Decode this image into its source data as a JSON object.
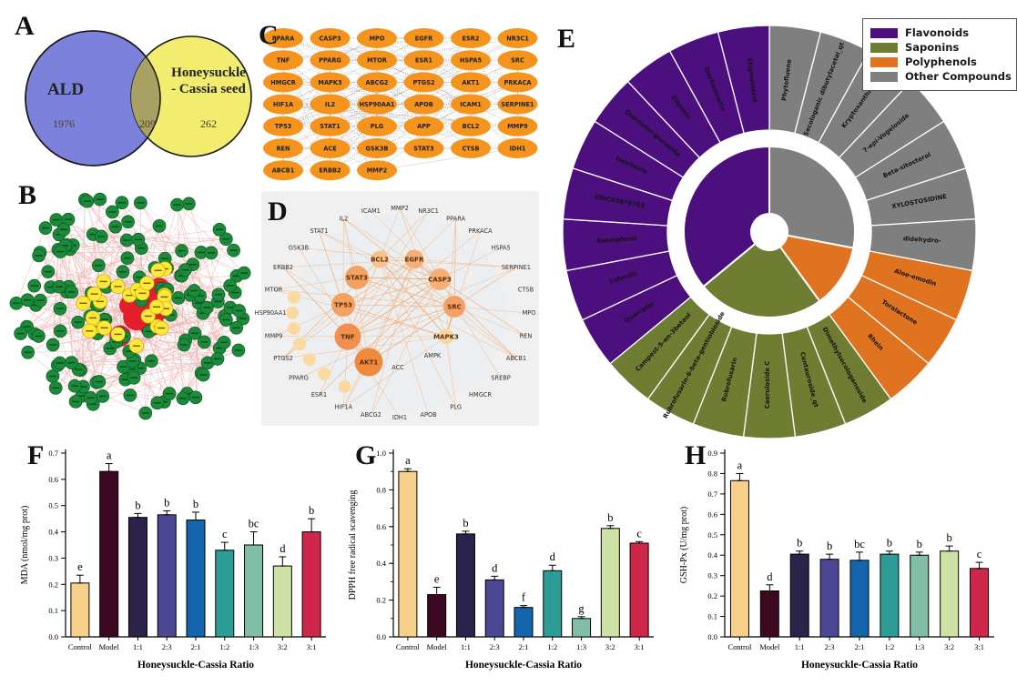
{
  "panels": {
    "a": {
      "letter": "A",
      "venn": {
        "left_label": "ALD",
        "left_count": "1976",
        "overlap_count": "209",
        "right_label_line1": "Honeysuckle",
        "right_label_line2": "- Cassia seed",
        "right_count": "262",
        "left_color": "#7c82dc",
        "right_color": "#f2ed6f",
        "overlap_color": "#a9a164",
        "outline_color": "#1a1a1a"
      }
    },
    "b": {
      "letter": "B",
      "network": {
        "outer_color": "#1b8a3a",
        "outer_stroke": "#0a5a22",
        "hub_color": "#ffe838",
        "hub_stroke": "#b8a000",
        "core_color": "#e31f2b",
        "edge_color_pink": "#f0adad",
        "edge_color_gray": "#cccccc",
        "outer_count": 150,
        "hub_count": 24,
        "core_count": 10
      }
    },
    "c": {
      "letter": "C",
      "node_color": "#f5941d",
      "edge_color": "#9a9a9a",
      "text_color": "#222222",
      "rows": [
        [
          "PPARA",
          "CASP3",
          "MPO",
          "EGFR",
          "ESR2",
          "NR3C1"
        ],
        [
          "TNF",
          "PPARG",
          "MTOR",
          "ESR1",
          "HSPA5",
          "SRC"
        ],
        [
          "HMGCR",
          "MAPK3",
          "ABCG2",
          "PTGS2",
          "AKT1",
          "PRKACA"
        ],
        [
          "HIF1A",
          "IL2",
          "HSP90AA1",
          "APOB",
          "ICAM1",
          "SERPINE1"
        ],
        [
          "TP53",
          "STAT1",
          "PLG",
          "APP",
          "BCL2",
          "MMP9"
        ],
        [
          "REN",
          "ACE",
          "GSK3B",
          "STAT3",
          "CTSB",
          "IDH1"
        ],
        [
          "ABCB1",
          "ERBB2",
          "MMP2"
        ]
      ]
    },
    "d": {
      "letter": "D",
      "background": "#f0f0f0",
      "edge_color": "#f3a76b",
      "label_color": "#333333",
      "outer_labels": [
        "MMP2",
        "NR3C1",
        "PPARA",
        "PRKACA",
        "HSPA5",
        "SERPINE1",
        "CTSB",
        "MPO",
        "REN",
        "ABCB1",
        "SREBP",
        "HMGCR",
        "PLG",
        "APOB",
        "IDH1",
        "ABCG2",
        "HIF1A",
        "ESR1",
        "PPARG",
        "PTGS2",
        "MMP9",
        "HSP90AA1",
        "MTOR",
        "ERBB2",
        "GSK3B",
        "STAT1",
        "IL2",
        "ICAM1"
      ],
      "ring_node_labels": [
        "HIF1A",
        "ESR1",
        "PPARG",
        "PTGS2",
        "MMP9",
        "HSP90AA1",
        "MTOR"
      ],
      "ring_node_color": "#fcd9a0",
      "mid_labels": [
        "ACC",
        "AMPK"
      ],
      "hub_nodes": [
        {
          "label": "AKT1",
          "size": 15.5,
          "color": "#ef8a3c"
        },
        {
          "label": "TNF",
          "size": 14.5,
          "color": "#f09050"
        },
        {
          "label": "TP53",
          "size": 13,
          "color": "#f4a263"
        },
        {
          "label": "STAT3",
          "size": 13,
          "color": "#f4a263"
        },
        {
          "label": "SRC",
          "size": 12,
          "color": "#f4a263"
        },
        {
          "label": "CASP3",
          "size": 12,
          "color": "#f6b077"
        },
        {
          "label": "EGFR",
          "size": 10.5,
          "color": "#f6b077"
        },
        {
          "label": "BCL2",
          "size": 9.5,
          "color": "#f8c08b"
        },
        {
          "label": "MAPK3",
          "size": 8.5,
          "color": "#fbd79f"
        }
      ]
    },
    "e": {
      "letter": "E"
    },
    "f": {
      "letter": "F"
    },
    "g": {
      "letter": "G"
    },
    "h": {
      "letter": "H"
    }
  },
  "chart_data": [
    {
      "type": "pie",
      "subtype": "sunburst",
      "panel": "E",
      "wedge_order": "clockwise-from-top",
      "equal_wedge_angle_deg": 14.4,
      "legend_position": "top-right",
      "legend": [
        {
          "label": "Flavonoids",
          "color": "#4b0f7e"
        },
        {
          "label": "Saponins",
          "color": "#6f7d33"
        },
        {
          "label": "Polyphenols",
          "color": "#e0731f"
        },
        {
          "label": "Other Compounds",
          "color": "#7f7f7f"
        }
      ],
      "categories": [
        {
          "name": "Other Compounds",
          "color": "#7f7f7f",
          "compounds": [
            "Phytofluene",
            "Secologanic dibutylacetal_qt",
            "Kryptoxanthin",
            "7-epi-Vogeloside",
            "Beta-sitosterol",
            "XYLOSTOSIDINE",
            "didehydro-"
          ]
        },
        {
          "name": "Polyphenols",
          "color": "#e0731f",
          "compounds": [
            "Aloe-emodin",
            "Toralactone",
            "Rhein"
          ]
        },
        {
          "name": "Saponins",
          "color": "#6f7d33",
          "compounds": [
            "Dimethylsecologanoside",
            "Centauroside_qt",
            "Caeruloside C",
            "Rubrofusarin",
            "Rubrofusarin-6-beta-gentiobioside",
            "Campest-5-en-3betaol"
          ]
        },
        {
          "name": "Flavonoids",
          "color": "#4b0f7e",
          "compounds": [
            "Quercetin",
            "Luteolin",
            "Kaempferol",
            "ZINC03978783",
            "Isovitexin",
            "Quercetin-glucoside",
            "Diosmin",
            "Isorhamnetin",
            "Stigmasterol"
          ]
        }
      ]
    },
    {
      "type": "bar",
      "panel": "F",
      "title": "",
      "ylabel": "MDA (nmol/mg prot)",
      "xlabel": "Honeysuckle-Cassia Ratio",
      "ylim": [
        0,
        0.7
      ],
      "ytick_step": 0.1,
      "categories": [
        "Control",
        "Model",
        "1:1",
        "2:3",
        "2:1",
        "1:2",
        "1:3",
        "3:2",
        "3:1"
      ],
      "values": [
        0.205,
        0.63,
        0.455,
        0.465,
        0.445,
        0.33,
        0.35,
        0.27,
        0.4
      ],
      "errors": [
        0.03,
        0.03,
        0.015,
        0.015,
        0.03,
        0.03,
        0.05,
        0.035,
        0.05
      ],
      "sig_letters": [
        "e",
        "a",
        "b",
        "b",
        "b",
        "c",
        "bc",
        "d",
        "b"
      ],
      "bar_colors": [
        "#f7d08a",
        "#3c0920",
        "#2b2349",
        "#4c4793",
        "#1565ad",
        "#2e9c96",
        "#80bfa5",
        "#cee2a5",
        "#ce2749"
      ]
    },
    {
      "type": "bar",
      "panel": "G",
      "title": "",
      "ylabel": "DPPH free radical scavenging",
      "xlabel": "Honeysuckle-Cassia Ratio",
      "ylim": [
        0,
        1.0
      ],
      "ytick_step": 0.2,
      "ytick_minor_step": 0.1,
      "categories": [
        "Control",
        "Model",
        "1:1",
        "2:3",
        "2:1",
        "1:2",
        "1:3",
        "3:2",
        "3:1"
      ],
      "values": [
        0.9,
        0.23,
        0.56,
        0.31,
        0.16,
        0.36,
        0.1,
        0.59,
        0.51
      ],
      "errors": [
        0.015,
        0.04,
        0.015,
        0.02,
        0.01,
        0.03,
        0.01,
        0.015,
        0.008
      ],
      "sig_letters": [
        "a",
        "e",
        "b",
        "d",
        "f",
        "d",
        "g",
        "b",
        "c"
      ],
      "bar_colors": [
        "#f7d08a",
        "#3c0920",
        "#2b2349",
        "#4c4793",
        "#1565ad",
        "#2e9c96",
        "#80bfa5",
        "#cee2a5",
        "#ce2749"
      ]
    },
    {
      "type": "bar",
      "panel": "H",
      "title": "",
      "ylabel": "GSH-Px (U/mg prot)",
      "xlabel": "Honeysuckle-Cassia Ratio",
      "ylim": [
        0,
        0.9
      ],
      "ytick_step": 0.1,
      "categories": [
        "Control",
        "Model",
        "1:1",
        "2:3",
        "2:1",
        "1:2",
        "1:3",
        "3:2",
        "3:1"
      ],
      "values": [
        0.765,
        0.225,
        0.405,
        0.38,
        0.375,
        0.405,
        0.4,
        0.42,
        0.335
      ],
      "errors": [
        0.035,
        0.03,
        0.015,
        0.025,
        0.04,
        0.015,
        0.015,
        0.025,
        0.03
      ],
      "sig_letters": [
        "a",
        "d",
        "b",
        "b",
        "bc",
        "b",
        "b",
        "b",
        "c"
      ],
      "bar_colors": [
        "#f7d08a",
        "#3c0920",
        "#2b2349",
        "#4c4793",
        "#1565ad",
        "#2e9c96",
        "#80bfa5",
        "#cee2a5",
        "#ce2749"
      ]
    }
  ]
}
